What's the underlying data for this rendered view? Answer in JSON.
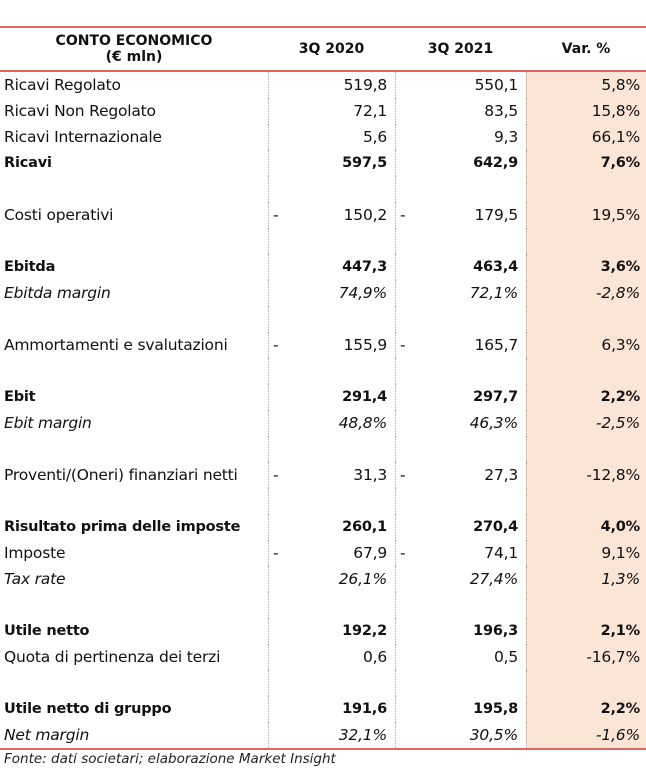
{
  "header": {
    "title_line1": "CONTO ECONOMICO",
    "title_line2": "(€ mln)",
    "col1": "3Q 2020",
    "col2": "3Q 2021",
    "col3": "Var. %"
  },
  "rows": [
    {
      "style": "normal",
      "label": "Ricavi Regolato",
      "v2020": "519,8",
      "v2021": "550,1",
      "var": "5,8%"
    },
    {
      "style": "normal",
      "label": "Ricavi Non Regolato",
      "v2020": "72,1",
      "v2021": "83,5",
      "var": "15,8%"
    },
    {
      "style": "normal",
      "label": "Ricavi Internazionale",
      "v2020": "5,6",
      "v2021": "9,3",
      "var": "66,1%"
    },
    {
      "style": "bold",
      "label": "Ricavi",
      "v2020": "597,5",
      "v2021": "642,9",
      "var": "7,6%"
    },
    {
      "style": "blank"
    },
    {
      "style": "normal",
      "label": "Costi operativi",
      "v2020": "150,2",
      "v2021": "179,5",
      "var": "19,5%",
      "neg2020": "-",
      "neg2021": "-"
    },
    {
      "style": "blank"
    },
    {
      "style": "bold",
      "label": "Ebitda",
      "v2020": "447,3",
      "v2021": "463,4",
      "var": "3,6%"
    },
    {
      "style": "italic",
      "label": "Ebitda margin",
      "v2020": "74,9%",
      "v2021": "72,1%",
      "var": "-2,8%"
    },
    {
      "style": "blank"
    },
    {
      "style": "normal",
      "label": "Ammortamenti e svalutazioni",
      "v2020": "155,9",
      "v2021": "165,7",
      "var": "6,3%",
      "neg2020": "-",
      "neg2021": "-"
    },
    {
      "style": "blank"
    },
    {
      "style": "bold",
      "label": "Ebit",
      "v2020": "291,4",
      "v2021": "297,7",
      "var": "2,2%"
    },
    {
      "style": "italic",
      "label": "Ebit margin",
      "v2020": "48,8%",
      "v2021": "46,3%",
      "var": "-2,5%"
    },
    {
      "style": "blank"
    },
    {
      "style": "normal",
      "label": "Proventi/(Oneri) finanziari netti",
      "v2020": "31,3",
      "v2021": "27,3",
      "var": "-12,8%",
      "neg2020": "-",
      "neg2021": "-"
    },
    {
      "style": "blank"
    },
    {
      "style": "bold",
      "label": "Risultato prima delle imposte",
      "v2020": "260,1",
      "v2021": "270,4",
      "var": "4,0%"
    },
    {
      "style": "normal",
      "label": "Imposte",
      "v2020": "67,9",
      "v2021": "74,1",
      "var": "9,1%",
      "neg2020": "-",
      "neg2021": "-"
    },
    {
      "style": "italic",
      "label": "Tax rate",
      "v2020": "26,1%",
      "v2021": "27,4%",
      "var": "1,3%"
    },
    {
      "style": "blank"
    },
    {
      "style": "bold",
      "label": "Utile netto",
      "v2020": "192,2",
      "v2021": "196,3",
      "var": "2,1%"
    },
    {
      "style": "normal",
      "label": "Quota di pertinenza dei terzi",
      "v2020": "0,6",
      "v2021": "0,5",
      "var": "-16,7%"
    },
    {
      "style": "blank"
    },
    {
      "style": "bold",
      "label": "Utile netto di gruppo",
      "v2020": "191,6",
      "v2021": "195,8",
      "var": "2,2%"
    },
    {
      "style": "italic",
      "label": "Net margin",
      "v2020": "32,1%",
      "v2021": "30,5%",
      "var": "-1,6%"
    }
  ],
  "source": "Fonte: dati societari; elaborazione Market Insight"
}
